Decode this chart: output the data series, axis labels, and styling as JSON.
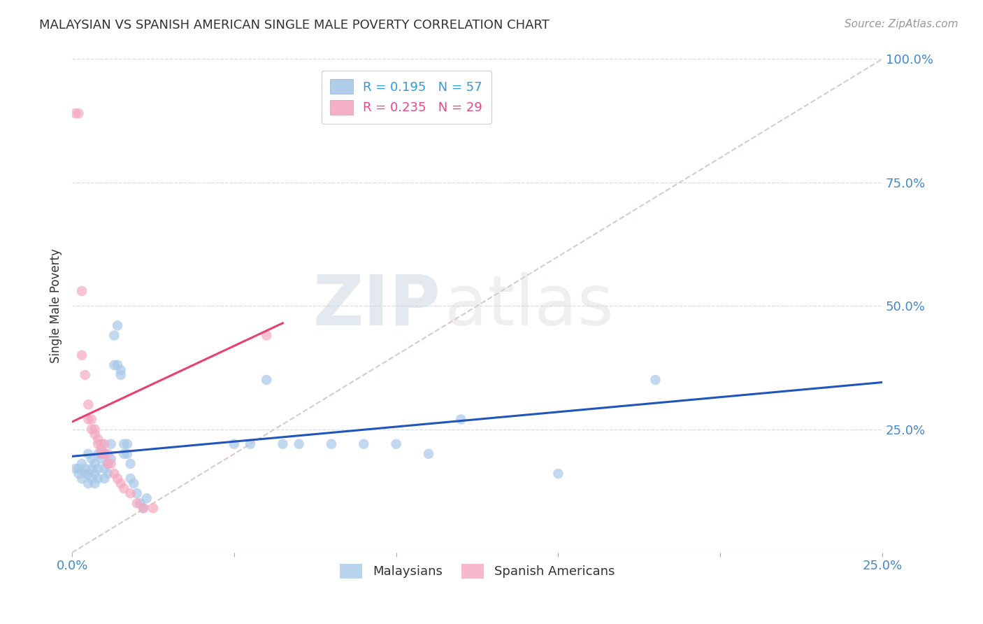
{
  "title": "MALAYSIAN VS SPANISH AMERICAN SINGLE MALE POVERTY CORRELATION CHART",
  "source": "Source: ZipAtlas.com",
  "ylabel": "Single Male Poverty",
  "x_min": 0.0,
  "x_max": 0.25,
  "y_min": 0.0,
  "y_max": 1.0,
  "y_ticks": [
    0.0,
    0.25,
    0.5,
    0.75,
    1.0
  ],
  "y_tick_labels": [
    "",
    "25.0%",
    "50.0%",
    "75.0%",
    "100.0%"
  ],
  "x_ticks": [
    0.0,
    0.05,
    0.1,
    0.15,
    0.2,
    0.25
  ],
  "x_tick_labels": [
    "0.0%",
    "",
    "",
    "",
    "",
    "25.0%"
  ],
  "legend_entries": [
    {
      "label": "Malaysians",
      "color": "#a8c8e8",
      "R": 0.195,
      "N": 57
    },
    {
      "label": "Spanish Americans",
      "color": "#f4a8c0",
      "R": 0.235,
      "N": 29
    }
  ],
  "diagonal_line_color": "#dcc8cc",
  "grid_color": "#d8dce8",
  "background_color": "#ffffff",
  "watermark_zip": "ZIP",
  "watermark_atlas": "atlas",
  "blue_line_color": "#2255bb",
  "pink_line_color": "#e84070",
  "malaysians_color": "#a8c8e8",
  "spanish_color": "#f4a8c0",
  "malaysians_scatter": [
    [
      0.001,
      0.17
    ],
    [
      0.002,
      0.17
    ],
    [
      0.002,
      0.16
    ],
    [
      0.003,
      0.18
    ],
    [
      0.003,
      0.15
    ],
    [
      0.004,
      0.17
    ],
    [
      0.004,
      0.16
    ],
    [
      0.005,
      0.2
    ],
    [
      0.005,
      0.16
    ],
    [
      0.005,
      0.14
    ],
    [
      0.006,
      0.19
    ],
    [
      0.006,
      0.17
    ],
    [
      0.006,
      0.15
    ],
    [
      0.007,
      0.18
    ],
    [
      0.007,
      0.16
    ],
    [
      0.007,
      0.14
    ],
    [
      0.008,
      0.2
    ],
    [
      0.008,
      0.17
    ],
    [
      0.008,
      0.15
    ],
    [
      0.009,
      0.22
    ],
    [
      0.009,
      0.19
    ],
    [
      0.01,
      0.2
    ],
    [
      0.01,
      0.17
    ],
    [
      0.01,
      0.15
    ],
    [
      0.011,
      0.18
    ],
    [
      0.011,
      0.16
    ],
    [
      0.012,
      0.22
    ],
    [
      0.012,
      0.19
    ],
    [
      0.013,
      0.38
    ],
    [
      0.013,
      0.44
    ],
    [
      0.014,
      0.46
    ],
    [
      0.014,
      0.38
    ],
    [
      0.015,
      0.37
    ],
    [
      0.015,
      0.36
    ],
    [
      0.016,
      0.22
    ],
    [
      0.016,
      0.2
    ],
    [
      0.017,
      0.22
    ],
    [
      0.017,
      0.2
    ],
    [
      0.018,
      0.18
    ],
    [
      0.018,
      0.15
    ],
    [
      0.019,
      0.14
    ],
    [
      0.02,
      0.12
    ],
    [
      0.021,
      0.1
    ],
    [
      0.022,
      0.09
    ],
    [
      0.023,
      0.11
    ],
    [
      0.05,
      0.22
    ],
    [
      0.055,
      0.22
    ],
    [
      0.06,
      0.35
    ],
    [
      0.065,
      0.22
    ],
    [
      0.07,
      0.22
    ],
    [
      0.08,
      0.22
    ],
    [
      0.09,
      0.22
    ],
    [
      0.1,
      0.22
    ],
    [
      0.11,
      0.2
    ],
    [
      0.12,
      0.27
    ],
    [
      0.15,
      0.16
    ],
    [
      0.18,
      0.35
    ]
  ],
  "spanish_scatter": [
    [
      0.001,
      0.89
    ],
    [
      0.002,
      0.89
    ],
    [
      0.003,
      0.53
    ],
    [
      0.003,
      0.4
    ],
    [
      0.004,
      0.36
    ],
    [
      0.005,
      0.3
    ],
    [
      0.005,
      0.27
    ],
    [
      0.006,
      0.27
    ],
    [
      0.006,
      0.25
    ],
    [
      0.007,
      0.25
    ],
    [
      0.007,
      0.24
    ],
    [
      0.008,
      0.23
    ],
    [
      0.008,
      0.22
    ],
    [
      0.009,
      0.21
    ],
    [
      0.009,
      0.2
    ],
    [
      0.01,
      0.22
    ],
    [
      0.01,
      0.2
    ],
    [
      0.011,
      0.2
    ],
    [
      0.011,
      0.18
    ],
    [
      0.012,
      0.18
    ],
    [
      0.013,
      0.16
    ],
    [
      0.014,
      0.15
    ],
    [
      0.015,
      0.14
    ],
    [
      0.016,
      0.13
    ],
    [
      0.018,
      0.12
    ],
    [
      0.02,
      0.1
    ],
    [
      0.022,
      0.09
    ],
    [
      0.025,
      0.09
    ],
    [
      0.06,
      0.44
    ]
  ],
  "blue_trend_x": [
    0.0,
    0.25
  ],
  "blue_trend_y": [
    0.195,
    0.345
  ],
  "pink_trend_x": [
    0.0,
    0.065
  ],
  "pink_trend_y": [
    0.265,
    0.465
  ]
}
